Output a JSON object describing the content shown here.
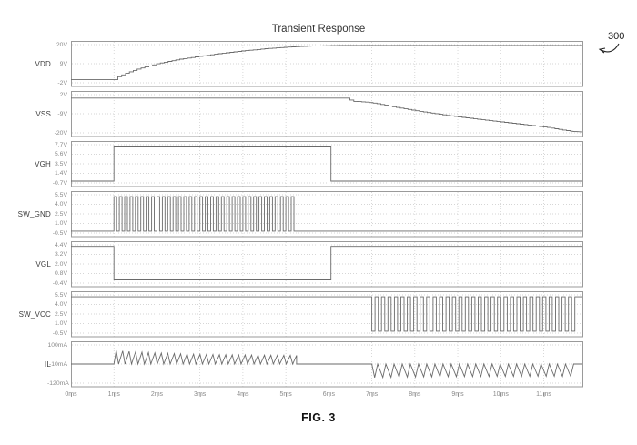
{
  "title": "Transient Response",
  "ref_label": "300",
  "fig_label": "FIG. 3",
  "colors": {
    "trace": "#6a6a6a",
    "grid": "#c9c9c9",
    "border": "#9a9a9a",
    "title_text": "#333333",
    "tick_text": "#8a8a8a",
    "signal_text": "#3d3d3d"
  },
  "chart_data": {
    "type": "line",
    "title": "Transient Response",
    "x": {
      "unit": "ms",
      "min": 0,
      "max": 11.9,
      "ticks": [
        0,
        1,
        2,
        3,
        4,
        5,
        6,
        7,
        8,
        9,
        10,
        11
      ],
      "tick_labels": [
        "0ms",
        "1ms",
        "2ms",
        "3ms",
        "4ms",
        "5ms",
        "6ms",
        "7ms",
        "8ms",
        "9ms",
        "10ms",
        "11ms"
      ]
    },
    "grid": true,
    "legend_position": "none",
    "panels": [
      {
        "name": "VDD",
        "y_ticks": [
          20,
          9,
          -2
        ],
        "y_tick_labels": [
          "20V",
          "9V",
          "-2V"
        ],
        "segments": [
          {
            "type": "poly",
            "pts": [
              [
                0,
                -0.2
              ],
              [
                1,
                -0.2
              ]
            ]
          },
          {
            "type": "stair",
            "step": 0.09,
            "pts": [
              [
                1,
                -0.2
              ],
              [
                1.08,
                1.4
              ],
              [
                1.25,
                3.4
              ],
              [
                1.55,
                6.0
              ],
              [
                2,
                9.0
              ],
              [
                2.5,
                11.5
              ],
              [
                3,
                13.3
              ],
              [
                3.5,
                15.0
              ],
              [
                4,
                16.4
              ],
              [
                4.5,
                17.6
              ],
              [
                5,
                18.5
              ],
              [
                5.5,
                19.1
              ],
              [
                6,
                19.4
              ],
              [
                6.4,
                19.5
              ]
            ]
          },
          {
            "type": "poly",
            "pts": [
              [
                6.4,
                19.5
              ],
              [
                11.9,
                19.5
              ]
            ]
          }
        ]
      },
      {
        "name": "VSS",
        "y_ticks": [
          2,
          -9,
          -20
        ],
        "y_tick_labels": [
          "2V",
          "-9V",
          "-20V"
        ],
        "segments": [
          {
            "type": "poly",
            "pts": [
              [
                0,
                0
              ],
              [
                6.4,
                0
              ]
            ]
          },
          {
            "type": "stair",
            "step": 0.09,
            "pts": [
              [
                6.4,
                0
              ],
              [
                6.55,
                -1.8
              ],
              [
                6.9,
                -2.4
              ],
              [
                7.1,
                -3.1
              ],
              [
                7.4,
                -4.6
              ],
              [
                7.8,
                -6.4
              ],
              [
                8.2,
                -8.0
              ],
              [
                8.7,
                -9.8
              ],
              [
                9.2,
                -11.4
              ],
              [
                9.7,
                -12.9
              ],
              [
                10.2,
                -14.3
              ],
              [
                10.7,
                -15.7
              ],
              [
                11.1,
                -17.0
              ],
              [
                11.5,
                -18.6
              ],
              [
                11.7,
                -19.2
              ]
            ]
          },
          {
            "type": "poly",
            "pts": [
              [
                11.7,
                -19.2
              ],
              [
                11.9,
                -19.4
              ]
            ]
          }
        ]
      },
      {
        "name": "VGH",
        "y_ticks": [
          7.7,
          5.6,
          3.5,
          1.4,
          -0.7
        ],
        "y_tick_labels": [
          "7.7V",
          "5.6V",
          "3.5V",
          "1.4V",
          "-0.7V"
        ],
        "segments": [
          {
            "type": "poly",
            "pts": [
              [
                0,
                -0.3
              ],
              [
                1,
                -0.3
              ],
              [
                1,
                7.4
              ],
              [
                6.05,
                7.4
              ],
              [
                6.05,
                -0.3
              ],
              [
                11.9,
                -0.3
              ]
            ]
          }
        ]
      },
      {
        "name": "SW_GND",
        "y_ticks": [
          5.5,
          4.0,
          2.5,
          1.0,
          -0.5
        ],
        "y_tick_labels": [
          "5.5V",
          "4.0V",
          "2.5V",
          "1.0V",
          "-0.5V"
        ],
        "segments": [
          {
            "type": "poly",
            "pts": [
              [
                0,
                -0.2
              ],
              [
                1,
                -0.2
              ]
            ]
          },
          {
            "type": "square",
            "t0": 1,
            "t1": 5.25,
            "lo": -0.2,
            "hi": 5.2,
            "period": 0.125,
            "phase": "up"
          },
          {
            "type": "poly",
            "pts": [
              [
                5.25,
                -0.2
              ],
              [
                11.9,
                -0.2
              ]
            ]
          }
        ]
      },
      {
        "name": "VGL",
        "y_ticks": [
          4.4,
          3.2,
          2.0,
          0.8,
          -0.4
        ],
        "y_tick_labels": [
          "4.4V",
          "3.2V",
          "2.0V",
          "0.8V",
          "-0.4V"
        ],
        "segments": [
          {
            "type": "poly",
            "pts": [
              [
                0,
                4.2
              ],
              [
                1,
                4.2
              ],
              [
                1,
                0
              ],
              [
                6.05,
                0
              ],
              [
                6.05,
                4.2
              ],
              [
                11.9,
                4.2
              ]
            ]
          }
        ]
      },
      {
        "name": "SW_VCC",
        "y_ticks": [
          5.5,
          4.0,
          2.5,
          1.0,
          -0.5
        ],
        "y_tick_labels": [
          "5.5V",
          "4.0V",
          "2.5V",
          "1.0V",
          "-0.5V"
        ],
        "segments": [
          {
            "type": "poly",
            "pts": [
              [
                0,
                5.2
              ],
              [
                7,
                5.2
              ]
            ]
          },
          {
            "type": "square",
            "t0": 7,
            "t1": 11.8,
            "lo": -0.2,
            "hi": 5.2,
            "period": 0.15,
            "phase": "down"
          },
          {
            "type": "poly",
            "pts": [
              [
                11.8,
                5.2
              ],
              [
                11.9,
                5.2
              ]
            ]
          }
        ]
      },
      {
        "name": "IL",
        "y_ticks": [
          100,
          -10,
          -120
        ],
        "y_tick_labels": [
          "100mA",
          "-10mA",
          "-120mA"
        ],
        "segments": [
          {
            "type": "poly",
            "pts": [
              [
                0,
                -10
              ],
              [
                1,
                -10
              ]
            ]
          },
          {
            "type": "saw",
            "t0": 1,
            "t1": 5.25,
            "base": -10,
            "peak_start": 68,
            "peak_end": 38,
            "period": 0.15
          },
          {
            "type": "poly",
            "pts": [
              [
                5.25,
                -10
              ],
              [
                7,
                -10
              ]
            ]
          },
          {
            "type": "saw",
            "t0": 7,
            "t1": 11.7,
            "base": -10,
            "peak_start": -88,
            "peak_end": -80,
            "period": 0.19
          },
          {
            "type": "poly",
            "pts": [
              [
                11.7,
                -10
              ],
              [
                11.9,
                -10
              ]
            ]
          }
        ]
      }
    ]
  }
}
